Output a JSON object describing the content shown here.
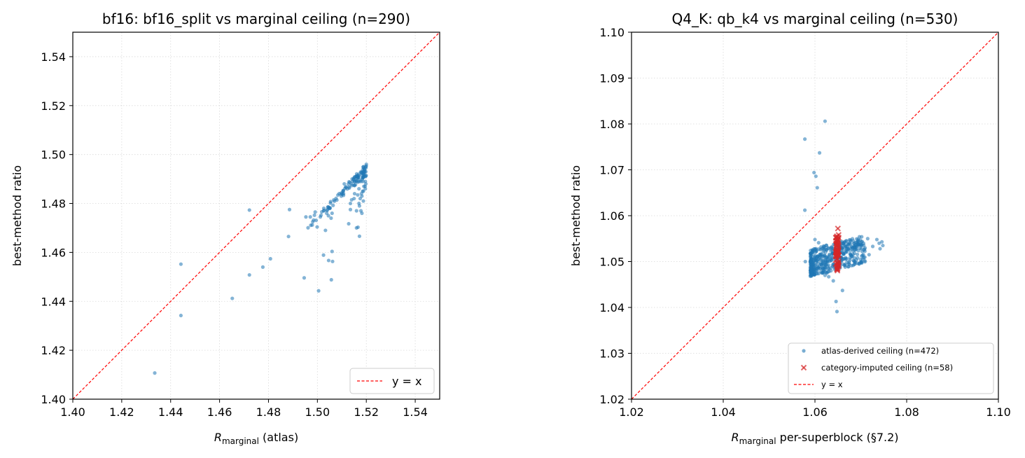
{
  "colors": {
    "points": "#1f77b4",
    "imputed": "#d62728",
    "identity": "#ff0000",
    "grid": "#d9d9d9"
  },
  "chart_data": [
    {
      "type": "scatter",
      "title": "bf16: bf16_split vs marginal ceiling (n=290)",
      "xlabel_main": "R",
      "xlabel_sub": "marginal",
      "xlabel_rest": " (atlas)",
      "ylabel": "best-method ratio",
      "xlim": [
        1.4,
        1.55
      ],
      "ylim": [
        1.4,
        1.55
      ],
      "xticks": [
        "1.40",
        "1.42",
        "1.44",
        "1.46",
        "1.48",
        "1.50",
        "1.52",
        "1.54"
      ],
      "yticks": [
        "1.40",
        "1.42",
        "1.44",
        "1.46",
        "1.48",
        "1.50",
        "1.52",
        "1.54"
      ],
      "grid": true,
      "legend_position": "lower-right",
      "legend": [
        "y = x"
      ],
      "series": [
        {
          "marker": "dot",
          "color": "#1f77b4",
          "x": [
            1.4335,
            1.4442,
            1.4442,
            1.4652,
            1.4722,
            1.4722,
            1.4777,
            1.4808,
            1.4882,
            1.4886,
            1.4946,
            1.4953,
            1.4971,
            1.4981,
            1.4991,
            1.5005,
            1.5012,
            1.5025,
            1.5033,
            1.5046,
            1.5056,
            1.5057,
            1.5062,
            1.5026,
            1.5051,
            1.506,
            1.4979,
            1.4988,
            1.4999,
            1.5038,
            1.5045,
            1.5052,
            1.5128,
            1.5135,
            1.516,
            1.5166,
            1.5172,
            1.5178,
            1.5182,
            1.5188,
            1.506,
            1.5135,
            1.515,
            1.5165,
            1.5185,
            1.5195,
            1.511,
            1.5142,
            1.5158,
            1.518,
            1.5194,
            1.5198,
            1.5186,
            1.517,
            1.5152,
            1.514,
            1.5172,
            1.5182,
            1.5196,
            1.5178,
            1.5188,
            1.5198,
            1.5192,
            1.5184,
            1.5198,
            1.517,
            1.516,
            1.519,
            1.5195,
            1.518,
            1.52,
            1.5196,
            1.5188,
            1.5175,
            1.5198
          ],
          "y": [
            1.4107,
            1.4342,
            1.4552,
            1.4412,
            1.4508,
            1.4773,
            1.454,
            1.4574,
            1.4665,
            1.4775,
            1.4496,
            1.4745,
            1.4745,
            1.4725,
            1.4765,
            1.4443,
            1.4745,
            1.4589,
            1.469,
            1.4567,
            1.474,
            1.4488,
            1.4563,
            1.477,
            1.478,
            1.4604,
            1.4712,
            1.4752,
            1.4704,
            1.476,
            1.475,
            1.4782,
            1.4717,
            1.4775,
            1.47,
            1.4703,
            1.4666,
            1.477,
            1.476,
            1.481,
            1.476,
            1.48,
            1.482,
            1.4835,
            1.485,
            1.487,
            1.488,
            1.49,
            1.491,
            1.4925,
            1.493,
            1.4945,
            1.489,
            1.486,
            1.484,
            1.4815,
            1.479,
            1.483,
            1.486,
            1.489,
            1.492,
            1.495,
            1.494,
            1.49,
            1.488,
            1.48,
            1.477,
            1.487,
            1.491,
            1.484,
            1.496,
            1.489,
            1.485,
            1.482,
            1.493
          ],
          "band": {
            "x_from": 1.496,
            "x_to": 1.52,
            "y_from": 1.471,
            "y_to": 1.4965,
            "count": 90
          }
        }
      ],
      "reference_line": {
        "name": "y = x",
        "style": "dashed",
        "color": "#ff0000"
      }
    },
    {
      "type": "scatter",
      "title": "Q4_K: qb_k4 vs marginal ceiling (n=530)",
      "xlabel_main": "R",
      "xlabel_sub": "marginal",
      "xlabel_rest": " per-superblock (§7.2)",
      "ylabel": "best-method ratio",
      "xlim": [
        1.02,
        1.1
      ],
      "ylim": [
        1.02,
        1.1
      ],
      "xticks": [
        "1.02",
        "1.04",
        "1.06",
        "1.08",
        "1.10"
      ],
      "yticks": [
        "1.02",
        "1.03",
        "1.04",
        "1.05",
        "1.06",
        "1.07",
        "1.08",
        "1.09",
        "1.10"
      ],
      "grid": true,
      "legend_position": "lower-right",
      "legend": [
        "atlas-derived ceiling (n=472)",
        "category-imputed ceiling (n=58)",
        "y = x"
      ],
      "series": [
        {
          "name": "atlas-derived ceiling (n=472)",
          "marker": "dot",
          "color": "#1f77b4",
          "x": [
            1.0622,
            1.0578,
            1.061,
            1.0598,
            1.0602,
            1.0605,
            1.06,
            1.0578,
            1.0579,
            1.0608,
            1.064,
            1.063,
            1.0646,
            1.0648,
            1.066,
            1.0708,
            1.0748,
            1.074,
            1.0746,
            1.0715,
            1.0718,
            1.0706,
            1.0703,
            1.0592,
            1.061,
            1.0622,
            1.0626,
            1.0635,
            1.0695,
            1.0726,
            1.0742,
            1.0735
          ],
          "y": [
            1.0806,
            1.0767,
            1.0737,
            1.0694,
            1.0686,
            1.0661,
            1.0548,
            1.0612,
            1.05,
            1.0541,
            1.0458,
            1.0467,
            1.0413,
            1.0391,
            1.0437,
            1.0527,
            1.0535,
            1.054,
            1.0543,
            1.055,
            1.0515,
            1.054,
            1.0522,
            1.0478,
            1.0485,
            1.047,
            1.0475,
            1.048,
            1.0545,
            1.0533,
            1.0528,
            1.0548
          ],
          "band": {
            "x_from": 1.059,
            "x_to": 1.071,
            "y_from": 1.0475,
            "y_to": 1.0545,
            "count": 440
          }
        },
        {
          "name": "category-imputed ceiling (n=58)",
          "marker": "x",
          "color": "#d62728",
          "x": [
            1.065
          ],
          "y": [
            1.0572
          ],
          "band": {
            "x_from": 1.0645,
            "x_to": 1.0652,
            "y_from": 1.048,
            "y_to": 1.056,
            "count": 57
          }
        }
      ],
      "reference_line": {
        "name": "y = x",
        "style": "dashed",
        "color": "#ff0000"
      }
    }
  ]
}
